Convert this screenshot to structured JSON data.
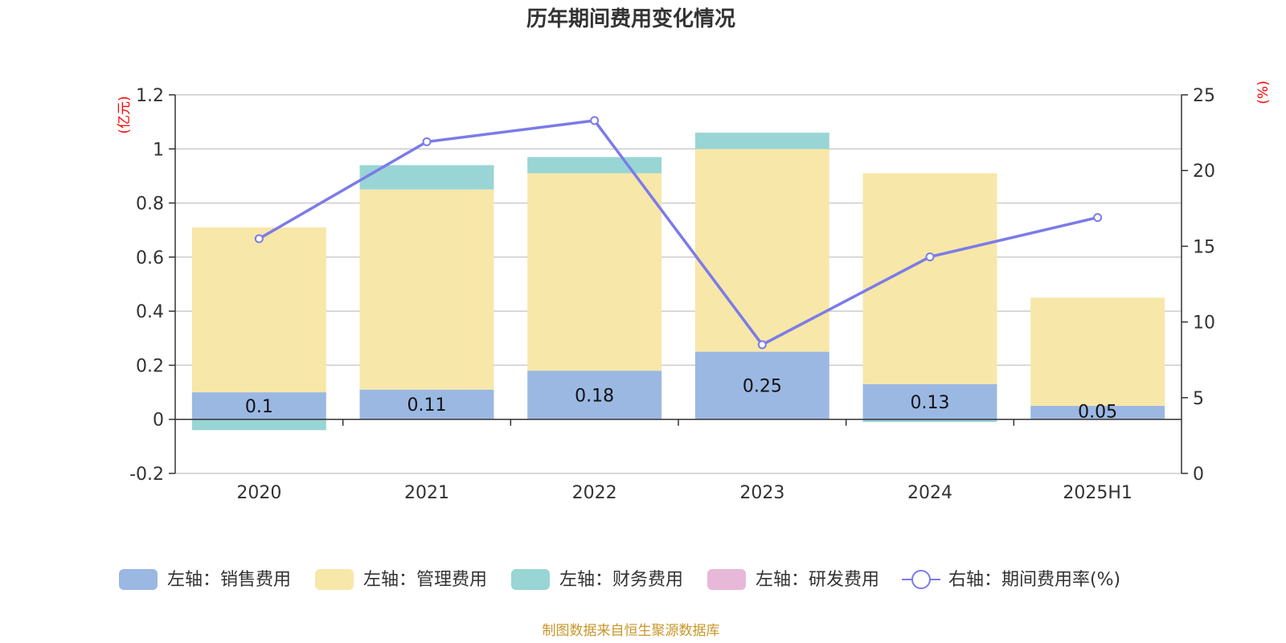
{
  "chart_data": {
    "type": "bar",
    "title": "历年期间费用变化情况",
    "categories": [
      "2020",
      "2021",
      "2022",
      "2023",
      "2024",
      "2025H1"
    ],
    "left_axis": {
      "unit": "(亿元)",
      "ylim": [
        -0.2,
        1.2
      ],
      "ticks": [
        -0.2,
        0,
        0.2,
        0.4,
        0.6,
        0.8,
        1,
        1.2
      ],
      "tick_labels": [
        "-0.2",
        "0",
        "0.2",
        "0.4",
        "0.6",
        "0.8",
        "1",
        "1.2"
      ]
    },
    "right_axis": {
      "unit": "(%)",
      "ylim": [
        0,
        25
      ],
      "ticks": [
        0,
        5,
        10,
        15,
        20,
        25
      ],
      "tick_labels": [
        "0",
        "5",
        "10",
        "15",
        "20",
        "25"
      ]
    },
    "grid": true,
    "series": [
      {
        "name": "左轴：销售费用",
        "axis": "left",
        "kind": "bar",
        "color": "#9bb8e3",
        "values": [
          0.1,
          0.11,
          0.18,
          0.25,
          0.13,
          0.05
        ],
        "labels": [
          "0.1",
          "0.11",
          "0.18",
          "0.25",
          "0.13",
          "0.05"
        ]
      },
      {
        "name": "左轴：管理费用",
        "axis": "left",
        "kind": "bar",
        "color": "#f7e7a9",
        "values": [
          0.61,
          0.74,
          0.73,
          0.75,
          0.78,
          0.4
        ]
      },
      {
        "name": "左轴：财务费用",
        "axis": "left",
        "kind": "bar",
        "color": "#99d5d5",
        "values": [
          -0.04,
          0.09,
          0.06,
          0.06,
          -0.01,
          0
        ]
      },
      {
        "name": "左轴：研发费用",
        "axis": "left",
        "kind": "bar",
        "color": "#e8b8d9",
        "values": [
          0,
          0,
          0,
          0,
          0,
          0
        ]
      },
      {
        "name": "右轴：期间费用率(%)",
        "axis": "right",
        "kind": "line",
        "color": "#7b7be8",
        "values": [
          15.5,
          21.9,
          23.3,
          8.5,
          14.3,
          16.9
        ]
      }
    ],
    "legend_position": "bottom"
  },
  "source_text": "制图数据来自恒生聚源数据库"
}
